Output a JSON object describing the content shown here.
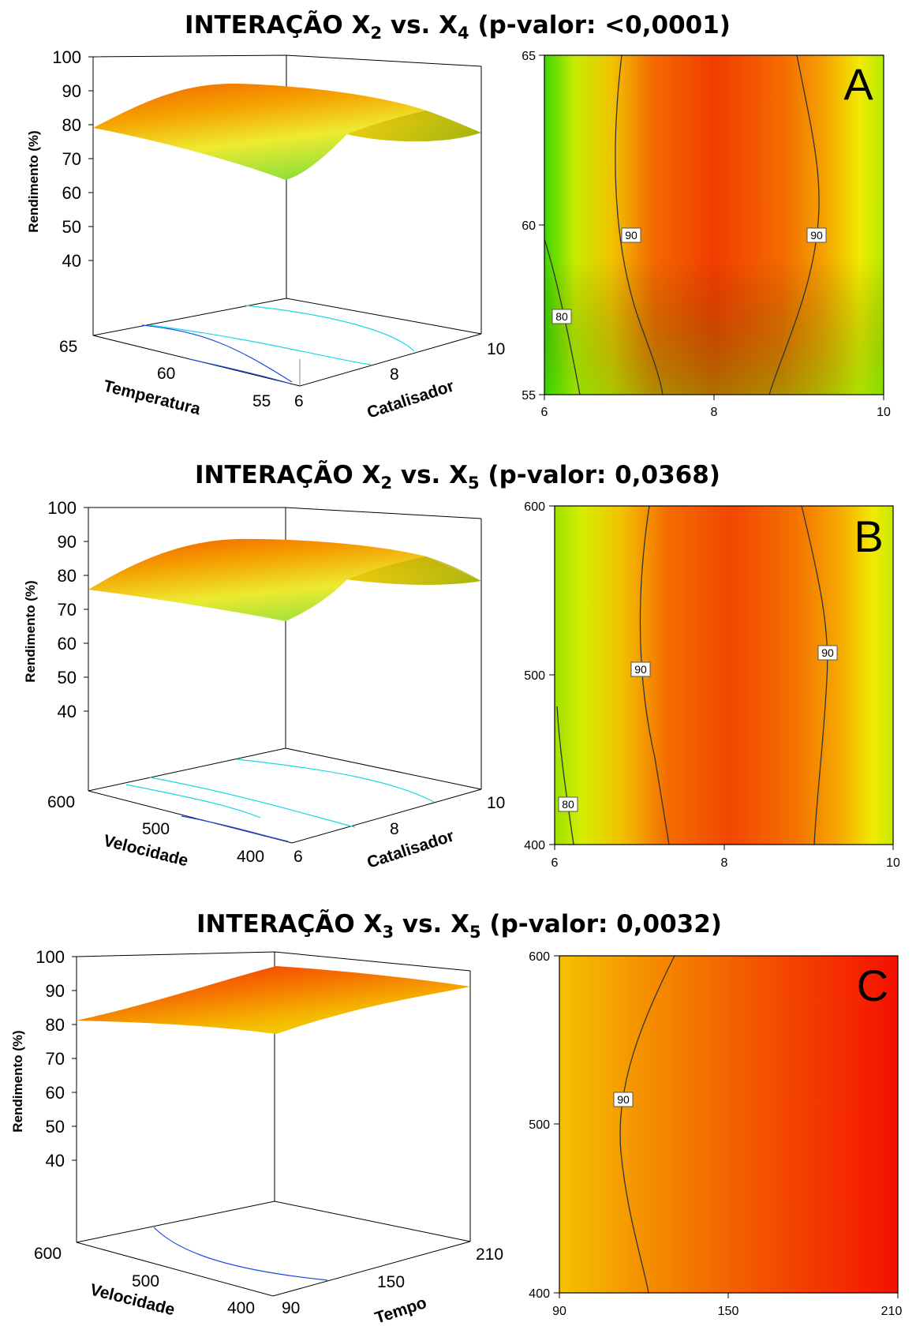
{
  "colors": {
    "green": "#40dc00",
    "yellow": "#f2f200",
    "orange": "#f59000",
    "red": "#f22400",
    "trace_light": "#19d7e6",
    "trace_dark": "#1f4fe0"
  },
  "chart_data": [
    {
      "type": "contour",
      "panel_letter": "A",
      "title_prefix": "INTERAÇÃO X",
      "title_sub1": "2",
      "title_mid": " vs. X",
      "title_sub2": "4",
      "title_suffix": " (p-valor: <0,0001)",
      "surface": {
        "zlabel": "Rendimento (%)",
        "zticks": [
          "100",
          "90",
          "80",
          "70",
          "60",
          "50",
          "40"
        ],
        "left_axis_label": "Temperatura",
        "left_axis_ticks": [
          "65",
          "60",
          "55"
        ],
        "right_axis_label": "Catalisador",
        "right_axis_ticks": [
          "6",
          "8",
          "10"
        ]
      },
      "contour": {
        "xlim": [
          6,
          10
        ],
        "ylim": [
          55,
          65
        ],
        "xticks": [
          "6",
          "8",
          "10"
        ],
        "yticks": [
          "55",
          "60",
          "65"
        ],
        "levels": [
          "90",
          "90",
          "80"
        ]
      }
    },
    {
      "type": "contour",
      "panel_letter": "B",
      "title_prefix": "INTERAÇÃO X",
      "title_sub1": "2",
      "title_mid": " vs. X",
      "title_sub2": "5",
      "title_suffix": " (p-valor: 0,0368)",
      "surface": {
        "zlabel": "Rendimento (%)",
        "zticks": [
          "100",
          "90",
          "80",
          "70",
          "60",
          "50",
          "40"
        ],
        "left_axis_label": "Velocidade",
        "left_axis_ticks": [
          "600",
          "500",
          "400"
        ],
        "right_axis_label": "Catalisador",
        "right_axis_ticks": [
          "6",
          "8",
          "10"
        ]
      },
      "contour": {
        "xlim": [
          6,
          10
        ],
        "ylim": [
          400,
          600
        ],
        "xticks": [
          "6",
          "8",
          "10"
        ],
        "yticks": [
          "400",
          "500",
          "600"
        ],
        "levels": [
          "90",
          "90",
          "80"
        ]
      }
    },
    {
      "type": "contour",
      "panel_letter": "C",
      "title_prefix": "INTERAÇÃO X",
      "title_sub1": "3",
      "title_mid": " vs. X",
      "title_sub2": "5",
      "title_suffix": " (p-valor: 0,0032)",
      "surface": {
        "zlabel": "Rendimento (%)",
        "zticks": [
          "100",
          "90",
          "80",
          "70",
          "60",
          "50",
          "40"
        ],
        "left_axis_label": "Velocidade",
        "left_axis_ticks": [
          "600",
          "500",
          "400"
        ],
        "right_axis_label": "Tempo",
        "right_axis_ticks": [
          "90",
          "150",
          "210"
        ]
      },
      "contour": {
        "xlim": [
          90,
          210
        ],
        "ylim": [
          400,
          600
        ],
        "xticks": [
          "90",
          "150",
          "210"
        ],
        "yticks": [
          "400",
          "500",
          "600"
        ],
        "levels": [
          "90"
        ]
      }
    }
  ]
}
